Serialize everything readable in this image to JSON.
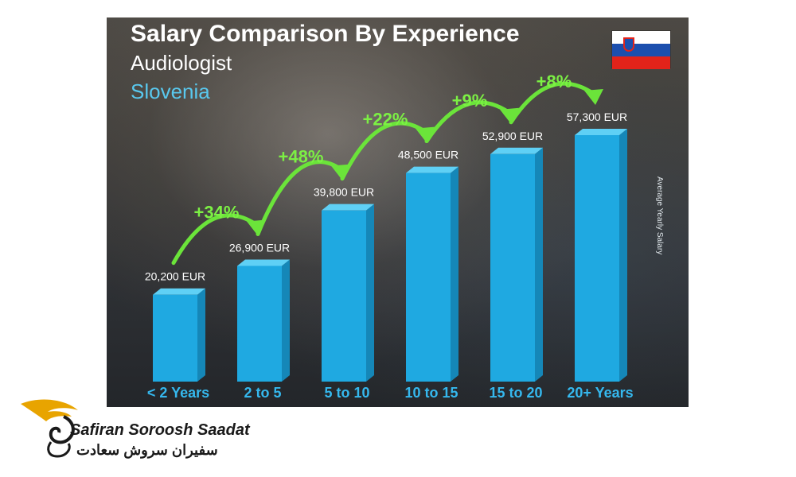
{
  "header": {
    "title": "Salary Comparison By Experience",
    "subtitle": "Audiologist",
    "country": "Slovenia"
  },
  "side_label": "Average Yearly Salary",
  "brand": {
    "name": "Safiran Soroosh Saadat",
    "name_fa": "سفیران سروش سعادت"
  },
  "colors": {
    "bar": "#1fa9e1",
    "bar_top": "#5fd0f5",
    "bar_side": "#1587b8",
    "arrow": "#6be43a",
    "percent": "#7cf044",
    "label": "#ffffff",
    "category": "#35b8ee",
    "flag_white": "#ffffff",
    "flag_blue": "#1c4fae",
    "flag_red": "#e2231a",
    "logo_gold": "#e8a400"
  },
  "chart_data": {
    "type": "bar",
    "title": "Salary Comparison By Experience",
    "subtitle": "Audiologist",
    "ylabel": "Average Yearly Salary",
    "unit": "EUR",
    "categories": [
      "< 2 Years",
      "2 to 5",
      "5 to 10",
      "10 to 15",
      "15 to 20",
      "20+ Years"
    ],
    "values": [
      20200,
      26900,
      39800,
      48500,
      52900,
      57300
    ],
    "value_labels": [
      "20,200 EUR",
      "26,900 EUR",
      "39,800 EUR",
      "48,500 EUR",
      "52,900 EUR",
      "57,300 EUR"
    ],
    "increases": [
      "+34%",
      "+48%",
      "+22%",
      "+9%",
      "+8%"
    ],
    "ylim": [
      0,
      57300
    ]
  }
}
